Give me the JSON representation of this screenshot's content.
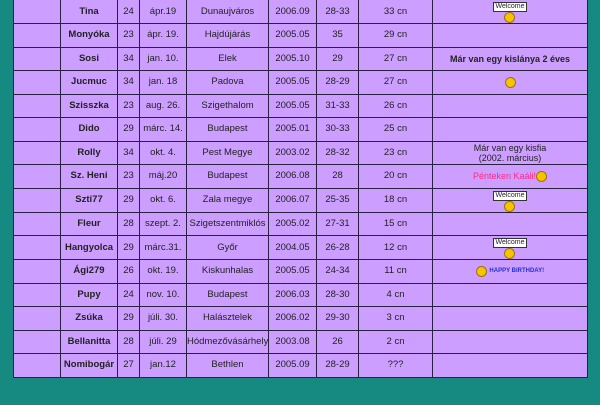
{
  "colors": {
    "background": "#168a80",
    "table": "#cc9eff",
    "accent_text": "#ff2a8a"
  },
  "rows": [
    {
      "name": "Tina",
      "age": "24",
      "date": "ápr.19",
      "city": "Dunaujváros",
      "since": "2006.09",
      "range": "28-33",
      "cn": "33 cn",
      "comment": "",
      "icon": "welcome-sign-smiley-icon",
      "icon_text": "Welcome"
    },
    {
      "name": "Monyóka",
      "age": "23",
      "date": "ápr. 19.",
      "city": "Hajdújárás",
      "since": "2005.05",
      "range": "35",
      "cn": "29 cn",
      "comment": ""
    },
    {
      "name": "Sosi",
      "age": "34",
      "date": "jan. 10.",
      "city": "Elek",
      "since": "2005.10",
      "range": "29",
      "cn": "27 cn",
      "comment": "Már van egy kislánya 2 éves"
    },
    {
      "name": "Jucmuc",
      "age": "34",
      "date": "jan. 18",
      "city": "Padova",
      "since": "2005.05",
      "range": "28-29",
      "cn": "27 cn",
      "comment": "",
      "icon": "thumbs-up-smiley-icon"
    },
    {
      "name": "Szisszka",
      "age": "23",
      "date": "aug. 26.",
      "city": "Szigethalom",
      "since": "2005.05",
      "range": "31-33",
      "cn": "26 cn",
      "comment": ""
    },
    {
      "name": "Dido",
      "age": "29",
      "date": "márc. 14.",
      "city": "Budapest",
      "since": "2005.01",
      "range": "30-33",
      "cn": "25 cn",
      "comment": ""
    },
    {
      "name": "Rolly",
      "age": "34",
      "date": "okt. 4.",
      "city": "Pest Megye",
      "since": "2003.02",
      "range": "28-32",
      "cn": "23 cn",
      "comment": "Már van egy kisfia",
      "comment2": "(2002. március)"
    },
    {
      "name": "Sz. Heni",
      "age": "23",
      "date": "máj.20",
      "city": "Budapest",
      "since": "2006.08",
      "range": "28",
      "cn": "20 cn",
      "comment": "Pénteken Kaáli!",
      "icon": "cheering-smiley-icon"
    },
    {
      "name": "Szti77",
      "age": "29",
      "date": "okt. 6.",
      "city": "Zala megye",
      "since": "2006.07",
      "range": "25-35",
      "cn": "18 cn",
      "comment": "",
      "icon": "welcome-sign-smiley-icon",
      "icon_text": "Welcome"
    },
    {
      "name": "Fleur",
      "age": "28",
      "date": "szept. 2.",
      "city": "Szigetszentmiklós",
      "since": "2005.02",
      "range": "27-31",
      "cn": "15 cn",
      "comment": ""
    },
    {
      "name": "Hangyolca",
      "age": "29",
      "date": "márc.31.",
      "city": "Győr",
      "since": "2004.05",
      "range": "26-28",
      "cn": "12 cn",
      "comment": "",
      "icon": "welcome-sign-smiley-icon",
      "icon_text": "Welcome"
    },
    {
      "name": "Ági279",
      "age": "26",
      "date": "okt. 19.",
      "city": "Kiskunhalas",
      "since": "2005.05",
      "range": "24-34",
      "cn": "11 cn",
      "comment": "",
      "icon": "party-hat-smiley-icon",
      "icon_text": "HAPPY BIRTHDAY!"
    },
    {
      "name": "Pupy",
      "age": "24",
      "date": "nov. 10.",
      "city": "Budapest",
      "since": "2006.03",
      "range": "28-30",
      "cn": "4 cn",
      "comment": ""
    },
    {
      "name": "Zsúka",
      "age": "29",
      "date": "júli. 30.",
      "city": "Halásztelek",
      "since": "2006.02",
      "range": "29-30",
      "cn": "3 cn",
      "comment": ""
    },
    {
      "name": "Bellanitta",
      "age": "28",
      "date": "júli. 29",
      "city": "Hódmezővásárhely",
      "since": "2003.08",
      "range": "26",
      "cn": "2 cn",
      "comment": ""
    },
    {
      "name": "Nomibogár",
      "age": "27",
      "date": "jan.12",
      "city": "Bethlen",
      "since": "2005.09",
      "range": "28-29",
      "cn": "???",
      "comment": ""
    }
  ]
}
